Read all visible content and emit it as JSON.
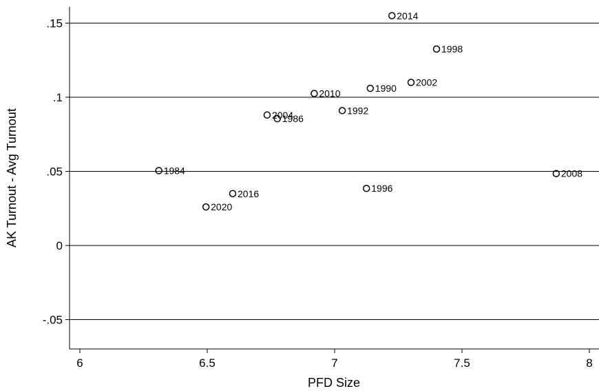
{
  "chart_data": {
    "type": "scatter",
    "title": "",
    "xlabel": "PFD Size",
    "ylabel": "AK Turnout - Avg Turnout",
    "xlim": [
      5.95,
      8.05
    ],
    "ylim": [
      -0.07,
      0.162
    ],
    "xticks": [
      6,
      6.5,
      7,
      7.5,
      8
    ],
    "xtick_labels": [
      "6",
      "6.5",
      "7",
      "7.5",
      "8"
    ],
    "yticks": [
      -0.05,
      0,
      0.05,
      0.1,
      0.15
    ],
    "ytick_labels": [
      "-.05",
      "0",
      ".05",
      ".1",
      ".15"
    ],
    "grid": "horizontal",
    "legend": "none",
    "marker": "hollow-circle",
    "points": [
      {
        "x": 6.31,
        "y": 0.0505,
        "label": "1984"
      },
      {
        "x": 6.775,
        "y": 0.0855,
        "label": "1986"
      },
      {
        "x": 7.14,
        "y": 0.106,
        "label": "1990"
      },
      {
        "x": 7.03,
        "y": 0.091,
        "label": "1992"
      },
      {
        "x": 7.125,
        "y": 0.0385,
        "label": "1996"
      },
      {
        "x": 7.4,
        "y": 0.1325,
        "label": "1998"
      },
      {
        "x": 7.3,
        "y": 0.11,
        "label": "2002"
      },
      {
        "x": 6.735,
        "y": 0.088,
        "label": "2004"
      },
      {
        "x": 7.87,
        "y": 0.0485,
        "label": "2008"
      },
      {
        "x": 6.92,
        "y": 0.1025,
        "label": "2010"
      },
      {
        "x": 7.225,
        "y": 0.155,
        "label": "2014"
      },
      {
        "x": 6.6,
        "y": 0.035,
        "label": "2016"
      },
      {
        "x": 6.495,
        "y": 0.026,
        "label": "2020"
      }
    ]
  }
}
